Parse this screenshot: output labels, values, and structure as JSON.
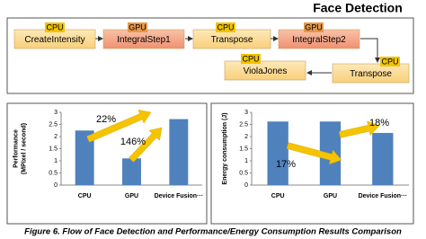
{
  "title": "Face Detection",
  "nodes": [
    {
      "label": "CreateIntensity",
      "processor": "CPU"
    },
    {
      "label": "IntegralStep1",
      "processor": "GPU"
    },
    {
      "label": "Transpose",
      "processor": "CPU"
    },
    {
      "label": "IntegralStep2",
      "processor": "GPU"
    },
    {
      "label": "Transpose",
      "processor": "CPU"
    },
    {
      "label": "ViolaJones",
      "processor": "CPU"
    }
  ],
  "chart_data": [
    {
      "type": "bar",
      "ylabel": [
        "Performance",
        "(MPixel / second)"
      ],
      "categories": [
        "CPU",
        "GPU",
        "Device Fusion···"
      ],
      "values": [
        2.25,
        1.1,
        2.72
      ],
      "color": "#4f81bd",
      "ylim": [
        0,
        3
      ],
      "yticks": [
        0,
        0.5,
        1,
        1.5,
        2,
        2.5,
        3
      ],
      "annotations": [
        "22%",
        "146%"
      ]
    },
    {
      "type": "bar",
      "ylabel": [
        "Energy consumption (J)"
      ],
      "categories": [
        "CPU",
        "GPU",
        "Device Fusion···"
      ],
      "values": [
        2.62,
        2.62,
        2.15
      ],
      "color": "#4f81bd",
      "ylim": [
        0,
        3
      ],
      "yticks": [
        0,
        0.5,
        1,
        1.5,
        2,
        2.5,
        3
      ],
      "annotations": [
        "18%",
        "17%"
      ]
    }
  ],
  "caption": "Figure 6. Flow of Face Detection and Performance/Energy Consumption Results Comparison"
}
